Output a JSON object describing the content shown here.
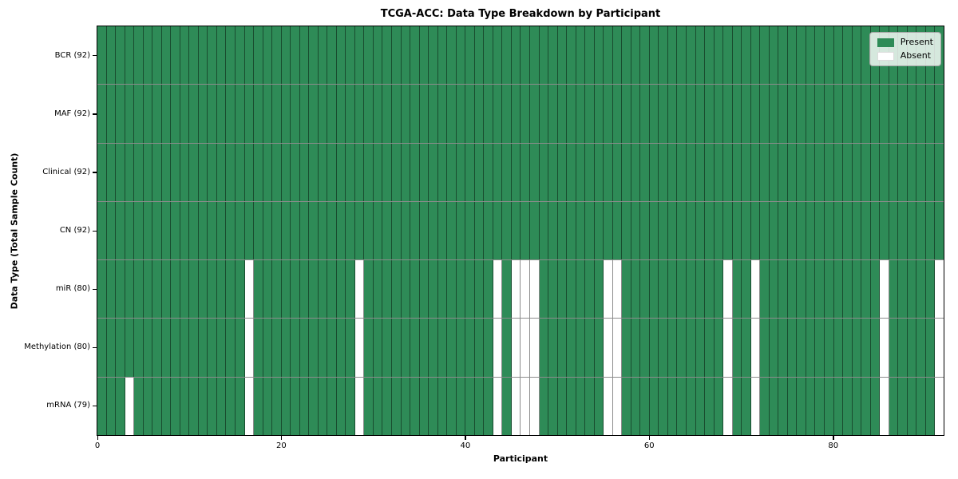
{
  "chart_data": {
    "type": "heatmap",
    "title": "TCGA-ACC: Data Type Breakdown by Participant",
    "xlabel": "Participant",
    "ylabel": "Data Type (Total Sample Count)",
    "n_participants": 92,
    "xlim": [
      0,
      92
    ],
    "x_ticks": [
      0,
      20,
      40,
      60,
      80
    ],
    "grid": "cell-borders",
    "legend_position": "upper-right",
    "rows": [
      {
        "label": "BCR (92)",
        "data_type": "BCR",
        "present_count": 92,
        "absent_participants": []
      },
      {
        "label": "MAF (92)",
        "data_type": "MAF",
        "present_count": 92,
        "absent_participants": []
      },
      {
        "label": "Clinical (92)",
        "data_type": "Clinical",
        "present_count": 92,
        "absent_participants": []
      },
      {
        "label": "CN (92)",
        "data_type": "CN",
        "present_count": 92,
        "absent_participants": []
      },
      {
        "label": "miR (80)",
        "data_type": "miR",
        "present_count": 80,
        "absent_participants": [
          16,
          28,
          43,
          45,
          46,
          47,
          55,
          56,
          68,
          71,
          85,
          91
        ]
      },
      {
        "label": "Methylation (80)",
        "data_type": "Methylation",
        "present_count": 80,
        "absent_participants": [
          16,
          28,
          43,
          45,
          46,
          47,
          55,
          56,
          68,
          71,
          85,
          91
        ]
      },
      {
        "label": "mRNA (79)",
        "data_type": "mRNA",
        "present_count": 79,
        "absent_participants": [
          3,
          16,
          28,
          43,
          45,
          46,
          47,
          55,
          56,
          68,
          71,
          85,
          91
        ]
      }
    ],
    "legend_entries": [
      {
        "label": "Present",
        "color": "#2e8b57"
      },
      {
        "label": "Absent",
        "color": "#ffffff"
      }
    ],
    "colors": {
      "present": "#2e8b57",
      "absent": "#ffffff",
      "cell_edge": "#8c8c8c",
      "axis_spine": "#000000",
      "background": "#ffffff"
    }
  }
}
